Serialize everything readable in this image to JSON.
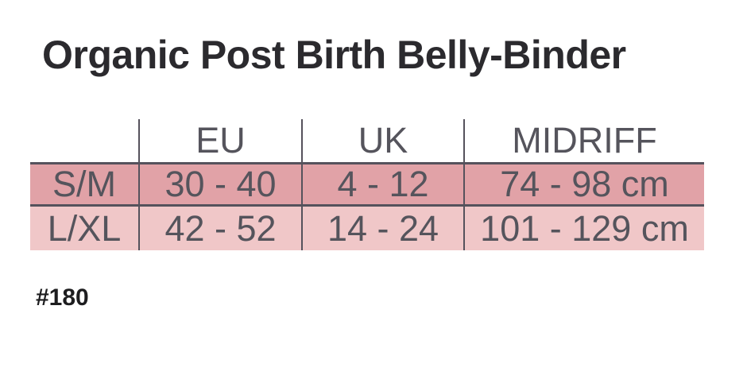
{
  "page": {
    "title": "Organic Post Birth Belly-Binder",
    "product_code": "#180"
  },
  "size_table": {
    "columns": [
      "",
      "EU",
      "UK",
      "MIDRIFF"
    ],
    "rows": [
      {
        "cells": [
          "S/M",
          "30 - 40",
          "4 - 12",
          "74 - 98 cm"
        ]
      },
      {
        "cells": [
          "L/XL",
          "42 - 52",
          "14 - 24",
          "101 - 129 cm"
        ]
      }
    ],
    "colors": {
      "row_sm_bg": "#e1a2a7",
      "row_lxl_bg": "#f0c7c8",
      "line": "#55525c",
      "table_text": "#55545c"
    }
  }
}
